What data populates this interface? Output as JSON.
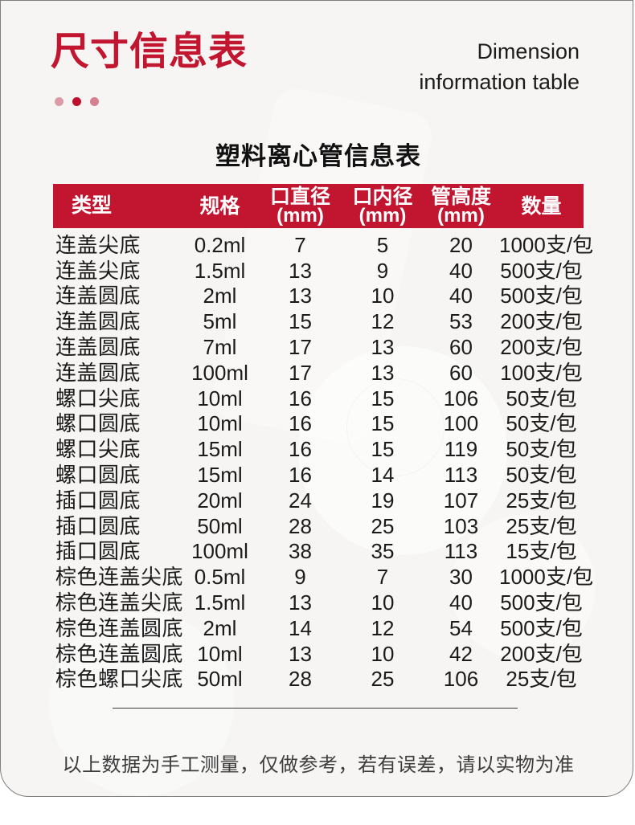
{
  "header": {
    "title_cn": "尺寸信息表",
    "subtitle_en_line1": "Dimension",
    "subtitle_en_line2": "information table"
  },
  "colors": {
    "accent_red": "#c2152f",
    "dot_light_pink": "#dc9aa8",
    "dot_dark_red": "#bf0f2e",
    "dot_mid_pink": "#d57f90",
    "card_background": "#f6f5f3",
    "header_text": "#ffffff"
  },
  "table": {
    "title": "塑料离心管信息表",
    "headers": [
      {
        "label": "类型",
        "sub": ""
      },
      {
        "label": "规格",
        "sub": ""
      },
      {
        "label": "口直径",
        "sub": "(mm)"
      },
      {
        "label": "口内径",
        "sub": "(mm)"
      },
      {
        "label": "管高度",
        "sub": "(mm)"
      },
      {
        "label": "数量",
        "sub": ""
      }
    ],
    "rows": [
      [
        "连盖尖底",
        "0.2ml",
        "7",
        "5",
        "20",
        "1000支/包"
      ],
      [
        "连盖尖底",
        "1.5ml",
        "13",
        "9",
        "40",
        "500支/包"
      ],
      [
        "连盖圆底",
        "2ml",
        "13",
        "10",
        "40",
        "500支/包"
      ],
      [
        "连盖圆底",
        "5ml",
        "15",
        "12",
        "53",
        "200支/包"
      ],
      [
        "连盖圆底",
        "7ml",
        "17",
        "13",
        "60",
        "200支/包"
      ],
      [
        "连盖圆底",
        "100ml",
        "17",
        "13",
        "60",
        "100支/包"
      ],
      [
        "螺口尖底",
        "10ml",
        "16",
        "15",
        "106",
        "50支/包"
      ],
      [
        "螺口圆底",
        "10ml",
        "16",
        "15",
        "100",
        "50支/包"
      ],
      [
        "螺口尖底",
        "15ml",
        "16",
        "15",
        "119",
        "50支/包"
      ],
      [
        "螺口圆底",
        "15ml",
        "16",
        "14",
        "113",
        "50支/包"
      ],
      [
        "插口圆底",
        "20ml",
        "24",
        "19",
        "107",
        "25支/包"
      ],
      [
        "插口圆底",
        "50ml",
        "28",
        "25",
        "103",
        "25支/包"
      ],
      [
        "插口圆底",
        "100ml",
        "38",
        "35",
        "113",
        "15支/包"
      ],
      [
        "棕色连盖尖底",
        "0.5ml",
        "9",
        "7",
        "30",
        "1000支/包"
      ],
      [
        "棕色连盖尖底",
        "1.5ml",
        "13",
        "10",
        "40",
        "500支/包"
      ],
      [
        "棕色连盖圆底",
        "2ml",
        "14",
        "12",
        "54",
        "500支/包"
      ],
      [
        "棕色连盖圆底",
        "10ml",
        "13",
        "10",
        "42",
        "200支/包"
      ],
      [
        "棕色螺口尖底",
        "50ml",
        "28",
        "25",
        "106",
        "25支/包"
      ]
    ]
  },
  "footer": {
    "note": "以上数据为手工测量，仅做参考，若有误差，请以实物为准"
  }
}
